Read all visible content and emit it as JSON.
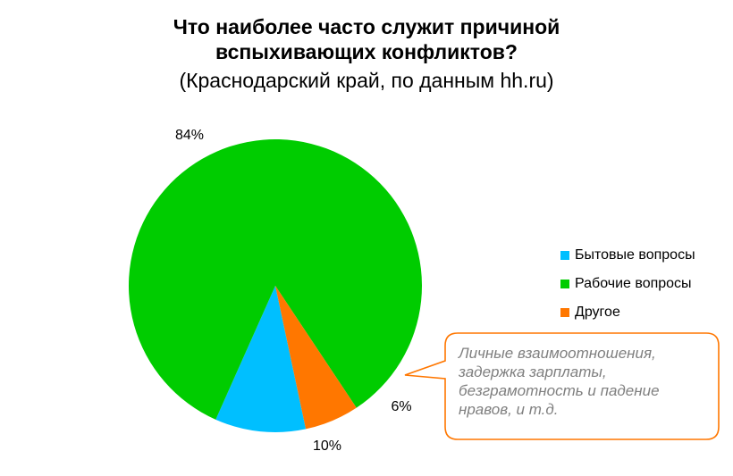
{
  "title_lines": [
    "Что наиболее часто служит причиной",
    "вспыхивающих конфликтов?"
  ],
  "subtitle": "(Краснодарский край, по данным hh.ru)",
  "chart_data": {
    "type": "pie",
    "title": "Что наиболее часто служит причиной вспыхивающих конфликтов?",
    "subtitle": "(Краснодарский край, по данным hh.ru)",
    "categories": [
      "Бытовые вопросы",
      "Рабочие вопросы",
      "Другое"
    ],
    "values": [
      10,
      84,
      6
    ],
    "value_labels": [
      "10%",
      "84%",
      "6%"
    ],
    "colors": [
      "#00bfff",
      "#00cc00",
      "#ff7700"
    ],
    "legend_position": "right"
  },
  "callout": {
    "text": "Личные взаимоотношения, задержка зарплаты, безграмотность и падение нравов, и т.д.",
    "border_color": "#ff7700"
  }
}
